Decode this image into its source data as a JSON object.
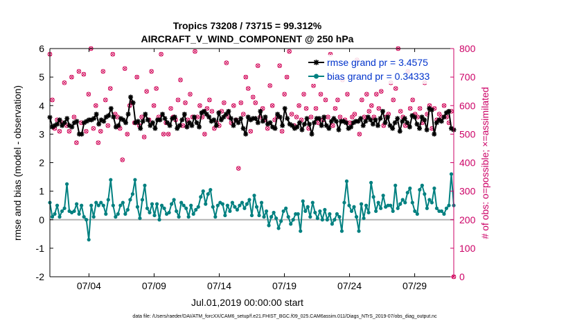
{
  "chart_data": {
    "type": "line",
    "title_line1": "Tropics 73208 / 73715 = 99.312%",
    "title_line2": "AIRCRAFT_V_WIND_COMPONENT @ 250 hPa",
    "xlabel": "Jul.01,2019 00:00:00 start",
    "ylabel_left": "rmse and bias (model - observation)",
    "ylabel_right": "# of obs: o=possible; ×=assimilated",
    "footer": "data file: /Users/raeder/DAI/ATM_forcXX/CAM6_setup/f.e21.FHIST_BGC.f09_025.CAM6assim.011/Diags_NTrS_2019-07/obs_diag_output.nc",
    "x_range": [
      1.0,
      32.0
    ],
    "y_left_range": [
      -2,
      6
    ],
    "y_right_range": [
      0,
      800
    ],
    "x_ticks": [
      {
        "value": 4,
        "label": "07/04"
      },
      {
        "value": 9,
        "label": "07/09"
      },
      {
        "value": 14,
        "label": "07/14"
      },
      {
        "value": 19,
        "label": "07/19"
      },
      {
        "value": 24,
        "label": "07/24"
      },
      {
        "value": 29,
        "label": "07/29"
      }
    ],
    "y_left_ticks": [
      {
        "value": -2,
        "label": "-2"
      },
      {
        "value": -1,
        "label": "-1"
      },
      {
        "value": 0,
        "label": "0"
      },
      {
        "value": 1,
        "label": "1"
      },
      {
        "value": 2,
        "label": "2"
      },
      {
        "value": 3,
        "label": "3"
      },
      {
        "value": 4,
        "label": "4"
      },
      {
        "value": 5,
        "label": "5"
      },
      {
        "value": 6,
        "label": "6"
      }
    ],
    "y_right_ticks": [
      {
        "value": 0,
        "label": "0"
      },
      {
        "value": 100,
        "label": "100"
      },
      {
        "value": 200,
        "label": "200"
      },
      {
        "value": 300,
        "label": "300"
      },
      {
        "value": 400,
        "label": "400"
      },
      {
        "value": 500,
        "label": "500"
      },
      {
        "value": 600,
        "label": "600"
      },
      {
        "value": 700,
        "label": "700"
      },
      {
        "value": 800,
        "label": "800"
      }
    ],
    "series": [
      {
        "name": "rmse grand pr = 3.4575",
        "axis": "left",
        "color": "#000000",
        "marker": "star",
        "values": [
          3.59,
          3.25,
          3.3,
          3.35,
          3.5,
          3.3,
          3.4,
          3.55,
          3.3,
          3.25,
          3.4,
          3.45,
          3.0,
          3.0,
          3.4,
          3.45,
          3.5,
          3.5,
          3.55,
          3.7,
          3.35,
          3.5,
          3.45,
          3.6,
          3.65,
          3.9,
          3.6,
          3.25,
          3.3,
          3.55,
          3.5,
          3.4,
          3.7,
          4.3,
          4.1,
          3.4,
          3.45,
          3.2,
          3.45,
          3.7,
          3.5,
          3.3,
          3.4,
          3.2,
          3.5,
          3.5,
          3.7,
          3.55,
          3.4,
          3.3,
          3.55,
          3.6,
          3.2,
          3.3,
          3.5,
          3.7,
          3.25,
          3.4,
          3.3,
          3.6,
          3.4,
          3.25,
          3.75,
          3.8,
          3.7,
          3.6,
          3.45,
          3.5,
          3.3,
          3.75,
          3.5,
          3.6,
          3.7,
          3.8,
          3.55,
          3.3,
          3.5,
          3.4,
          3.55,
          3.2,
          3.0,
          3.6,
          3.5,
          3.55,
          3.55,
          3.4,
          3.8,
          3.45,
          3.6,
          3.35,
          3.4,
          3.25,
          3.2,
          3.7,
          3.6,
          3.3,
          3.9,
          3.55,
          3.35,
          3.3,
          3.2,
          3.25,
          3.4,
          3.15,
          3.35,
          3.55,
          3.35,
          3.0,
          3.4,
          3.55,
          3.55,
          3.3,
          3.6,
          3.3,
          3.2,
          3.45,
          3.55,
          3.45,
          3.15,
          3.45,
          3.45,
          3.4,
          3.2,
          3.25,
          3.4,
          3.45,
          3.45,
          3.55,
          3.3,
          3.45,
          3.6,
          3.5,
          3.35,
          3.5,
          3.3,
          3.55,
          3.8,
          3.4,
          3.6,
          3.3,
          3.2,
          3.4,
          3.55,
          3.1,
          3.45,
          3.55,
          3.4,
          3.25,
          3.65,
          3.6,
          3.35,
          3.2,
          3.6,
          3.5,
          3.15,
          3.9,
          3.85,
          3.0,
          3.4,
          3.5,
          3.45,
          3.6,
          3.75,
          3.8,
          3.2,
          3.15
        ]
      },
      {
        "name": "bias grand pr = 0.34333",
        "axis": "left",
        "color": "#008080",
        "marker": "circle",
        "values": [
          0.6,
          0.1,
          0.2,
          0.5,
          0.1,
          0.3,
          0.4,
          1.25,
          0.3,
          0.25,
          0.3,
          0.55,
          0.2,
          0.5,
          0.1,
          0.0,
          -0.7,
          0.5,
          0.1,
          0.6,
          0.5,
          0.6,
          0.5,
          0.2,
          0.7,
          1.4,
          0.5,
          0.1,
          0.2,
          0.5,
          0.6,
          0.2,
          0.35,
          0.7,
          0.9,
          1.4,
          0.45,
          0.05,
          0.7,
          1.2,
          0.4,
          0.25,
          0.55,
          0.15,
          0.55,
          0.0,
          0.5,
          0.4,
          0.2,
          0.25,
          0.55,
          0.7,
          0.3,
          0.1,
          0.6,
          0.5,
          0.4,
          0.1,
          0.5,
          0.2,
          0.35,
          0.45,
          0.8,
          1.0,
          0.55,
          0.9,
          1.05,
          0.45,
          0.1,
          0.5,
          0.6,
          0.55,
          0.15,
          0.5,
          0.3,
          0.6,
          0.45,
          0.35,
          0.5,
          0.6,
          0.4,
          0.55,
          0.7,
          0.15,
          0.85,
          0.45,
          0.15,
          0.6,
          0.1,
          0.3,
          -0.2,
          0.1,
          0.25,
          0.05,
          -0.3,
          -0.05,
          0.3,
          0.4,
          0.1,
          -0.15,
          0.0,
          0.2,
          0.2,
          -0.4,
          0.65,
          0.3,
          0.45,
          0.1,
          0.6,
          0.25,
          0.05,
          0.3,
          0.0,
          0.35,
          0.0,
          0.2,
          -0.15,
          0.0,
          0.2,
          0.1,
          -0.4,
          0.6,
          1.35,
          0.5,
          0.3,
          0.45,
          0.1,
          -0.4,
          0.55,
          0.05,
          0.5,
          0.25,
          1.3,
          0.8,
          0.3,
          0.6,
          0.4,
          0.85,
          0.45,
          0.5,
          0.5,
          0.3,
          1.2,
          0.4,
          0.55,
          0.7,
          0.6,
          0.95,
          1.1,
          0.6,
          0.3,
          0.2,
          1.05,
          1.2,
          0.9,
          0.4,
          0.7,
          0.6,
          1.1,
          0.4,
          0.3,
          0.3,
          0.2,
          0.4,
          0.5,
          1.6,
          0.5
        ]
      }
    ],
    "obs_counts_axis": "right",
    "obs_color": "#d00055",
    "obs_possible": [
      780,
      620,
      520,
      550,
      510,
      540,
      680,
      530,
      510,
      700,
      560,
      470,
      720,
      540,
      710,
      510,
      640,
      800,
      520,
      600,
      470,
      510,
      720,
      620,
      530,
      660,
      780,
      570,
      560,
      520,
      410,
      730,
      500,
      600,
      610,
      540,
      700,
      530,
      560,
      490,
      650,
      550,
      720,
      600,
      660,
      560,
      780,
      500,
      540,
      500,
      590,
      560,
      550,
      620,
      690,
      530,
      610,
      550,
      640,
      560,
      790,
      560,
      600,
      560,
      500,
      590,
      620,
      580,
      520,
      540,
      530,
      580,
      610,
      750,
      560,
      540,
      600,
      550,
      380,
      610,
      570,
      700,
      660,
      510,
      630,
      610,
      740,
      560,
      590,
      550,
      520,
      670,
      600,
      550,
      560,
      740,
      510,
      640,
      700,
      790,
      570,
      530,
      560,
      600,
      550,
      640,
      590,
      520,
      560,
      670,
      590,
      540,
      640,
      550,
      620,
      560,
      780,
      530,
      590,
      620,
      560,
      690,
      550,
      640,
      540,
      560,
      570,
      760,
      500,
      620,
      560,
      640,
      580,
      600,
      560,
      640,
      590,
      650,
      530,
      560,
      570,
      680,
      620,
      660,
      800,
      580,
      560,
      530,
      720,
      590,
      620,
      570,
      560,
      590,
      540,
      680,
      570,
      600,
      520,
      590,
      550,
      570,
      560,
      600,
      560,
      540,
      580,
      0
    ],
    "obs_assimilated": [
      780,
      620,
      520,
      550,
      510,
      540,
      680,
      530,
      510,
      700,
      560,
      470,
      720,
      540,
      710,
      510,
      640,
      800,
      520,
      600,
      470,
      510,
      720,
      620,
      530,
      660,
      780,
      570,
      560,
      520,
      410,
      730,
      500,
      600,
      610,
      540,
      700,
      530,
      560,
      490,
      650,
      550,
      720,
      600,
      660,
      560,
      780,
      500,
      540,
      500,
      590,
      560,
      550,
      620,
      690,
      530,
      610,
      550,
      640,
      560,
      790,
      560,
      600,
      560,
      500,
      590,
      620,
      580,
      520,
      540,
      530,
      580,
      610,
      750,
      560,
      540,
      600,
      550,
      380,
      610,
      570,
      700,
      660,
      510,
      630,
      610,
      740,
      560,
      590,
      550,
      520,
      670,
      600,
      550,
      560,
      740,
      510,
      640,
      700,
      790,
      570,
      530,
      560,
      600,
      550,
      640,
      590,
      520,
      560,
      670,
      590,
      540,
      640,
      550,
      620,
      560,
      780,
      530,
      590,
      620,
      560,
      690,
      550,
      640,
      540,
      560,
      570,
      760,
      500,
      620,
      560,
      640,
      580,
      600,
      560,
      640,
      590,
      650,
      530,
      560,
      570,
      680,
      620,
      660,
      800,
      580,
      560,
      530,
      720,
      590,
      620,
      570,
      560,
      590,
      540,
      680,
      570,
      600,
      520,
      590,
      550,
      570,
      560,
      600,
      560,
      540,
      580,
      0
    ],
    "legend_position": "top-right"
  },
  "colors": {
    "left_axis": "#000000",
    "right_axis": "#cc0066",
    "zero_line": "#b3b3b3",
    "legend_text": "#0033cc"
  }
}
